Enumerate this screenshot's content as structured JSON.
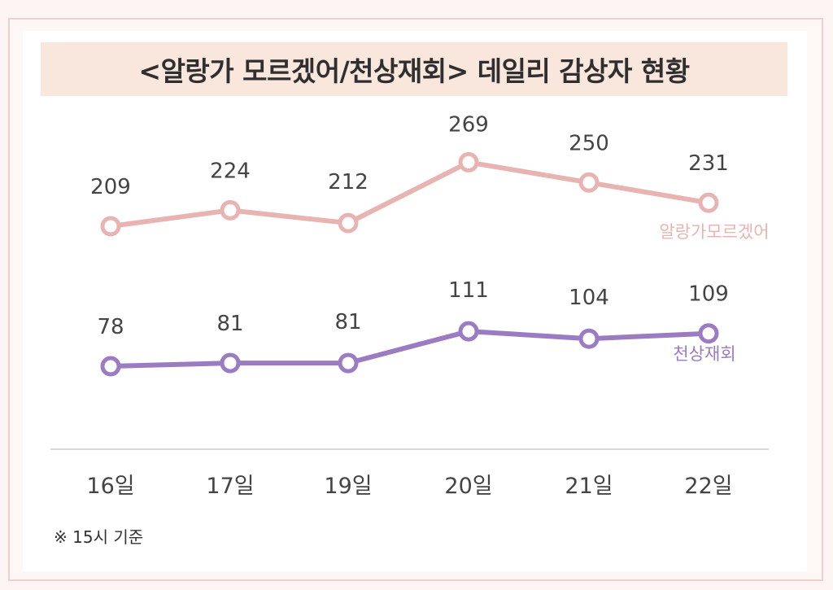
{
  "chart_data": {
    "type": "line",
    "title": "<알랑가 모르겠어/천상재회> 데일리 감상자 현황",
    "categories": [
      "16일",
      "17일",
      "19일",
      "20일",
      "21일",
      "22일"
    ],
    "series": [
      {
        "name": "알랑가모르겠어",
        "values": [
          209,
          224,
          212,
          269,
          250,
          231
        ],
        "color": "#e8b4b2"
      },
      {
        "name": "천상재회",
        "values": [
          78,
          81,
          81,
          111,
          104,
          109
        ],
        "color": "#9b7cc3"
      }
    ],
    "note": "※ 15시 기준"
  }
}
